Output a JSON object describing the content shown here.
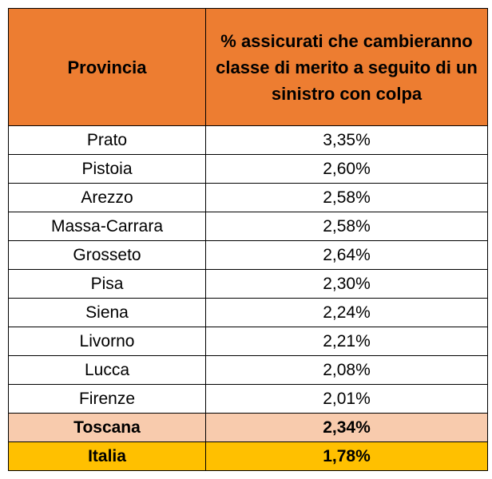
{
  "table": {
    "headers": [
      "Provincia",
      "% assicurati che cambieranno classe di merito a seguito di un sinistro con colpa"
    ],
    "rows": [
      {
        "provincia": "Prato",
        "percentuale": "3,35%"
      },
      {
        "provincia": "Pistoia",
        "percentuale": "2,60%"
      },
      {
        "provincia": "Arezzo",
        "percentuale": "2,58%"
      },
      {
        "provincia": "Massa-Carrara",
        "percentuale": "2,58%"
      },
      {
        "provincia": "Grosseto",
        "percentuale": "2,64%"
      },
      {
        "provincia": "Pisa",
        "percentuale": "2,30%"
      },
      {
        "provincia": "Siena",
        "percentuale": "2,24%"
      },
      {
        "provincia": "Livorno",
        "percentuale": "2,21%"
      },
      {
        "provincia": "Lucca",
        "percentuale": "2,08%"
      },
      {
        "provincia": "Firenze",
        "percentuale": "2,01%"
      }
    ],
    "toscana": {
      "provincia": "Toscana",
      "percentuale": "2,34%"
    },
    "italia": {
      "provincia": "Italia",
      "percentuale": "1,78%"
    }
  },
  "colors": {
    "header_bg": "#ed7d31",
    "toscana_bg": "#f8cbad",
    "italia_bg": "#ffc000",
    "border": "#000000"
  }
}
